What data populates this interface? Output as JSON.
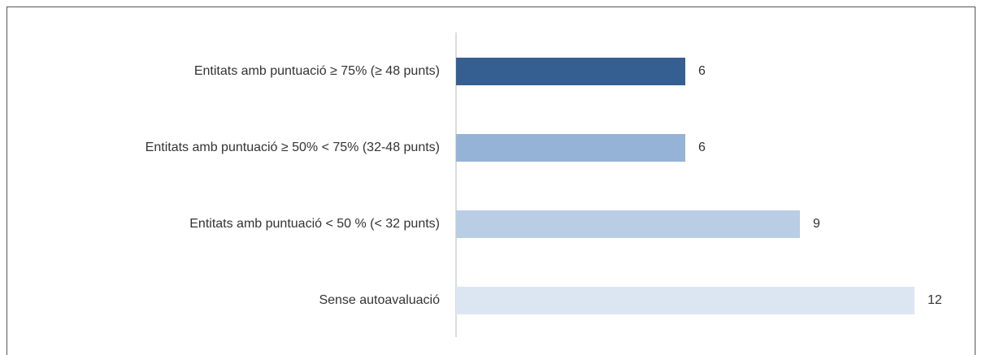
{
  "chart_data": {
    "type": "hbar",
    "categories": [
      "Entitats amb puntuació ≥ 75% (≥ 48 punts)",
      "Entitats amb puntuació ≥ 50% < 75% (32-48 punts)",
      "Entitats amb puntuació < 50 % (< 32 punts)",
      "Sense autoavaluació"
    ],
    "values": [
      6,
      6,
      9,
      12
    ],
    "colors": [
      "#355f91",
      "#95b3d7",
      "#b9cde5",
      "#dce6f2"
    ]
  }
}
